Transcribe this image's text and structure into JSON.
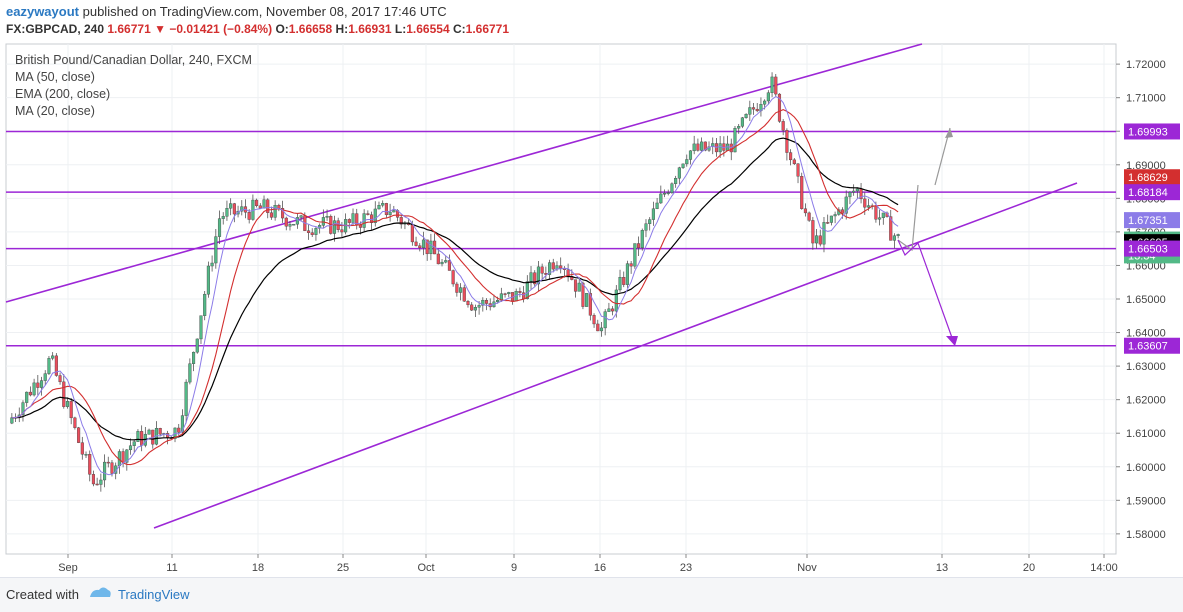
{
  "header": {
    "author": "eazywayout",
    "published_text": "published on TradingView.com, November 08, 2017 17:46 UTC",
    "symbol": "FX:GBPCAD, 240",
    "last": "1.66771",
    "change": "−0.01421 (−0.84%)",
    "o_label": "O:",
    "o": "1.66658",
    "h_label": "H:",
    "h": "1.66931",
    "l_label": "L:",
    "l": "1.66554",
    "c_label": "C:",
    "c": "1.66771"
  },
  "legend": {
    "title": "British Pound/Canadian Dollar, 240, FXCM",
    "ma50": "MA (50, close)",
    "ema200": "EMA (200, close)",
    "ma20": "MA (20, close)"
  },
  "footer": {
    "created_with": "Created with",
    "brand": "TradingView"
  },
  "colors": {
    "up": "#53b987",
    "down": "#eb4d5c",
    "channel": "#9c27d6",
    "ma50": "#d32f2f",
    "ema200": "#000000",
    "ma20": "#8c7ce8"
  },
  "chart_data": {
    "type": "candlestick",
    "title": "British Pound/Canadian Dollar, 240, FXCM",
    "x_tick_labels": [
      "Sep",
      "11",
      "18",
      "25",
      "Oct",
      "9",
      "16",
      "23",
      "Nov",
      "13",
      "20",
      "14:00"
    ],
    "y_tick_labels": [
      "1.72000",
      "1.71000",
      "1.70000",
      "1.69000",
      "1.68000",
      "1.67000",
      "1.66000",
      "1.65000",
      "1.64000",
      "1.63000",
      "1.62000",
      "1.61000",
      "1.60000",
      "1.59000",
      "1.58000"
    ],
    "ylim": [
      1.574,
      1.726
    ],
    "price_series": {
      "x": [
        "Sep 1",
        "Sep 5",
        "Sep 8",
        "Sep 11",
        "Sep 14",
        "Sep 18",
        "Sep 21",
        "Sep 25",
        "Sep 28",
        "Oct 2",
        "Oct 5",
        "Oct 9",
        "Oct 13",
        "Oct 16",
        "Oct 19",
        "Oct 23",
        "Oct 26",
        "Oct 30",
        "Nov 1",
        "Nov 3",
        "Nov 6",
        "Nov 8"
      ],
      "close": [
        1.613,
        1.632,
        1.595,
        1.608,
        1.611,
        1.675,
        1.677,
        1.672,
        1.672,
        1.677,
        1.664,
        1.648,
        1.651,
        1.663,
        1.641,
        1.67,
        1.694,
        1.695,
        1.715,
        1.666,
        1.683,
        1.6677
      ]
    },
    "horizontal_levels": [
      "1.69993",
      "1.68184",
      "1.66503",
      "1.63607"
    ],
    "price_labels": [
      {
        "text": "1.69993",
        "value": 1.69993,
        "color": "#9c27d6"
      },
      {
        "text": "1.68629",
        "value": 1.68629,
        "color": "#d32f2f"
      },
      {
        "text": "1.68184",
        "value": 1.68184,
        "color": "#9c27d6"
      },
      {
        "text": "1.67351",
        "value": 1.67351,
        "color": "#8c7ce8"
      },
      {
        "text": "1.66771",
        "value": 1.66771,
        "color": "#53b987"
      },
      {
        "text": "13:34",
        "value": 1.663,
        "color": "#53b987"
      },
      {
        "text": "1.66695",
        "value": 1.66695,
        "color": "#000000"
      },
      {
        "text": "1.66503",
        "value": 1.66503,
        "color": "#9c27d6"
      },
      {
        "text": "1.63607",
        "value": 1.63607,
        "color": "#9c27d6"
      }
    ],
    "indicators": [
      "MA (50, close)",
      "EMA (200, close)",
      "MA (20, close)"
    ]
  }
}
